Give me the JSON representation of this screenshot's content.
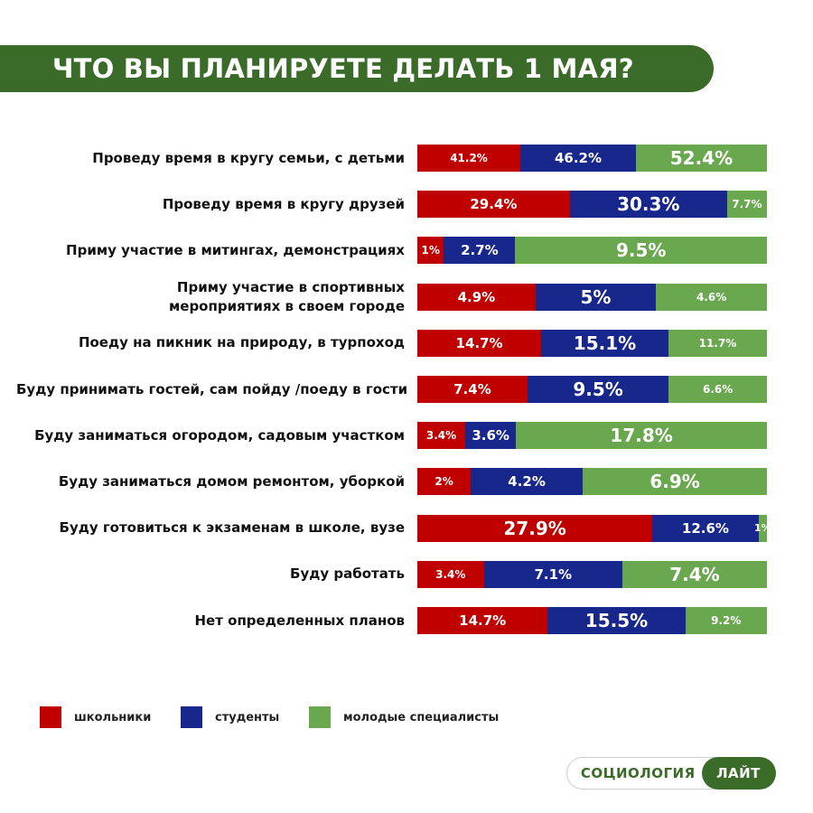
{
  "colors": {
    "banner": "#3a6b28",
    "schoolchildren": "#c00000",
    "students": "#17278c",
    "young_specialists": "#6aa84f"
  },
  "chart_data": {
    "type": "bar",
    "orientation": "horizontal",
    "stacked": true,
    "title": "ЧТО ВЫ ПЛАНИРУЕТЕ ДЕЛАТЬ 1 МАЯ?",
    "categories": [
      [
        "Проведу время в кругу семьи, с детьми"
      ],
      [
        "Проведу время в кругу друзей"
      ],
      [
        "Приму участие в митингах, демонстрациях"
      ],
      [
        "Приму участие в спортивных",
        "мероприятиях в своем городе"
      ],
      [
        "Поеду на пикник на природу, в турпоход"
      ],
      [
        "Буду принимать гостей, сам пойду /поеду в гости"
      ],
      [
        "Буду заниматься огородом, садовым участком"
      ],
      [
        "Буду заниматься домом ремонтом, уборкой"
      ],
      [
        "Буду готовиться к экзаменам в школе, вузе"
      ],
      [
        "Буду работать"
      ],
      [
        "Нет определенных планов"
      ]
    ],
    "series": [
      {
        "name": "школьники",
        "values": [
          41.2,
          29.4,
          1,
          4.9,
          14.7,
          7.4,
          3.4,
          2,
          27.9,
          3.4,
          14.7
        ],
        "labels": [
          "41.2%",
          "29.4%",
          "1%",
          "4.9%",
          "14.7%",
          "7.4%",
          "3.4%",
          "2%",
          "27.9%",
          "3.4%",
          "14.7%"
        ]
      },
      {
        "name": "студенты",
        "values": [
          46.2,
          30.3,
          2.7,
          5,
          15.1,
          9.5,
          3.6,
          4.2,
          12.6,
          7.1,
          15.5
        ],
        "labels": [
          "46.2%",
          "30.3%",
          "2.7%",
          "5%",
          "15.1%",
          "9.5%",
          "3.6%",
          "4.2%",
          "12.6%",
          "7.1%",
          "15.5%"
        ]
      },
      {
        "name": "молодые специалисты",
        "values": [
          52.4,
          7.7,
          9.5,
          4.6,
          11.7,
          6.6,
          17.8,
          6.9,
          1,
          7.4,
          9.2
        ],
        "labels": [
          "52.4%",
          "7.7%",
          "9.5%",
          "4.6%",
          "11.7%",
          "6.6%",
          "17.8%",
          "6.9%",
          "1%",
          "7.4%",
          "9.2%"
        ]
      }
    ],
    "legend_position": "bottom-left",
    "grid": false
  },
  "brand": {
    "left": "СОЦИОЛОГИЯ",
    "right": "ЛАЙТ"
  }
}
